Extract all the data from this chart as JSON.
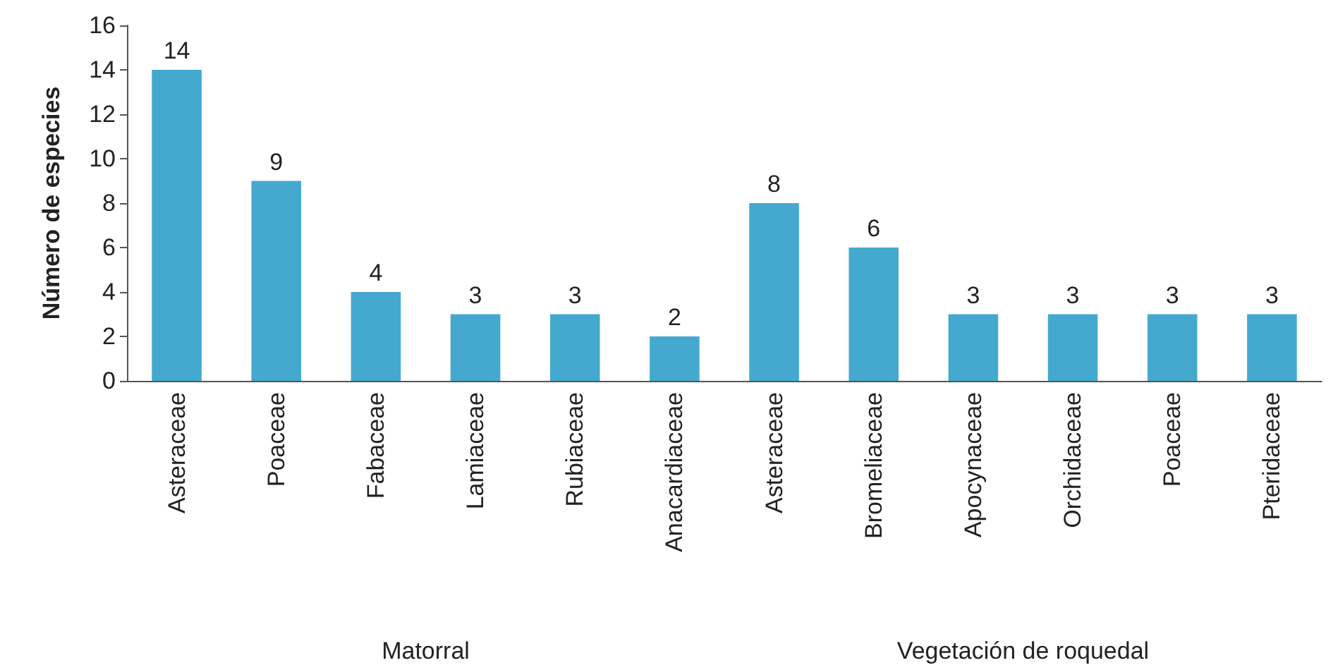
{
  "chart_data": {
    "type": "bar",
    "ylabel": "Número de especies",
    "categories": [
      "Asteraceae",
      "Poaceae",
      "Fabaceae",
      "Lamiaceae",
      "Rubiaceae",
      "Anacardiaceae",
      "Asteraceae",
      "Bromeliaceae",
      "Apocynaceae",
      "Orchidaceae",
      "Poaceae",
      "Pteridaceae"
    ],
    "values": [
      14,
      9,
      4,
      3,
      3,
      2,
      8,
      6,
      3,
      3,
      3,
      3
    ],
    "color": "#45a9cf",
    "ylim": [
      0,
      16
    ],
    "yticks": [
      0,
      2,
      4,
      6,
      8,
      10,
      12,
      14,
      16
    ],
    "grid": false,
    "data_labels": true,
    "annotations": [
      "Matorral",
      "Vegetación de roquedal"
    ]
  }
}
